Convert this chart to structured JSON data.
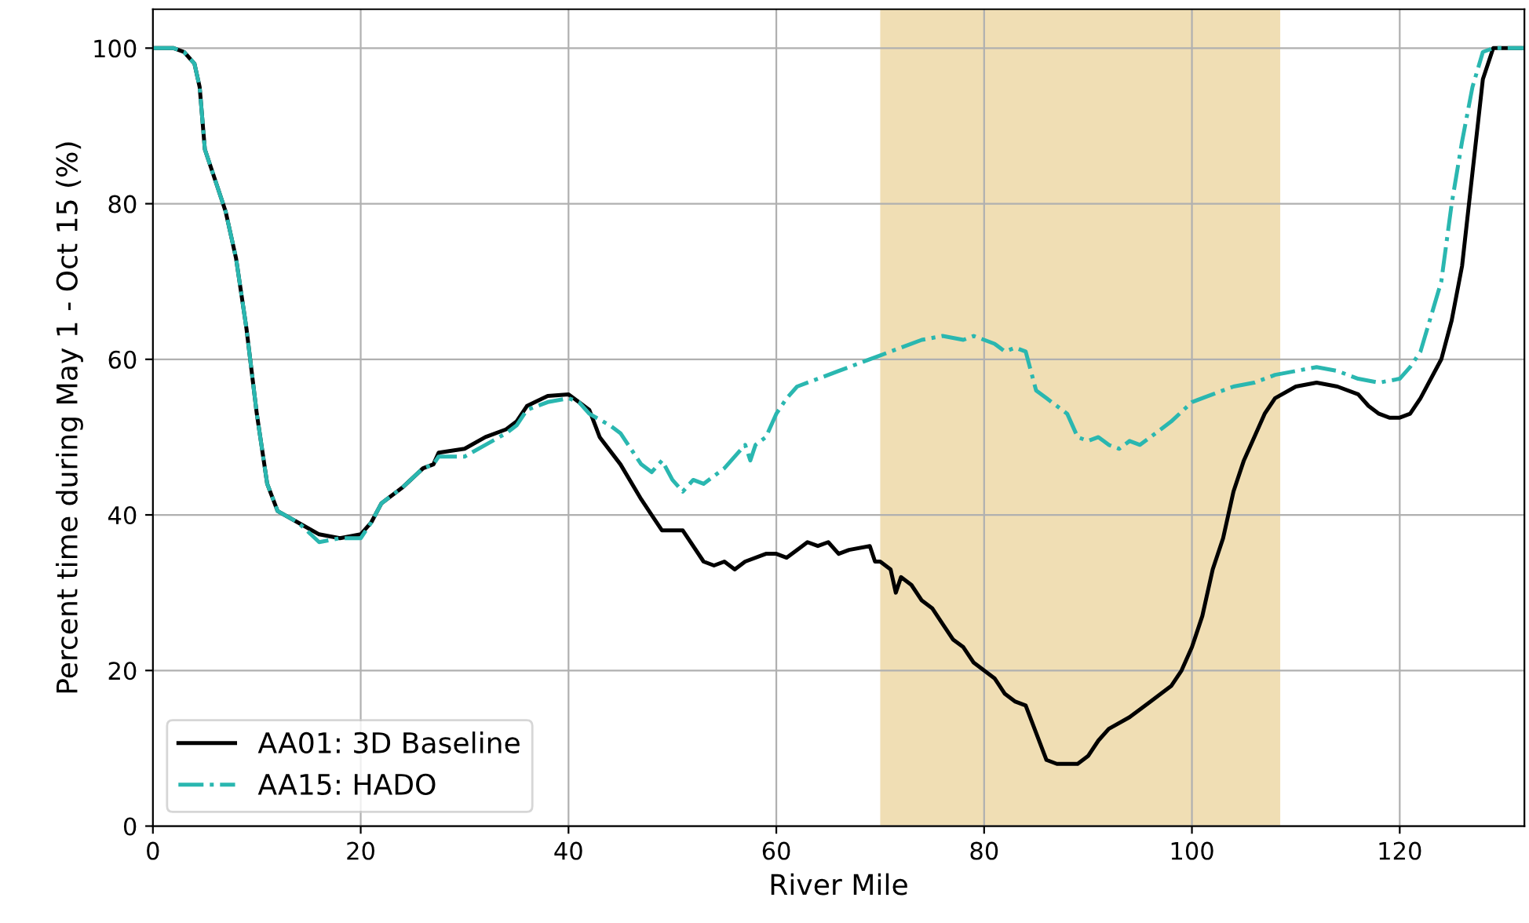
{
  "chart_data": {
    "type": "line",
    "xlabel": "River Mile",
    "ylabel": "Percent time during May 1 - Oct 15 (%)",
    "xlim": [
      0,
      132
    ],
    "ylim": [
      0,
      105
    ],
    "xticks": [
      0,
      20,
      40,
      60,
      80,
      100,
      120
    ],
    "yticks": [
      0,
      20,
      40,
      60,
      80,
      100
    ],
    "grid": true,
    "legend": "bottom left",
    "bands": [
      {
        "axis": "x",
        "from": 70,
        "to": 108.5,
        "color": "#f0deb4"
      }
    ],
    "series": [
      {
        "name": "AA01: 3D Baseline",
        "color": "#000000",
        "line_style": "solid",
        "x": [
          0,
          2,
          3,
          4,
          4.5,
          5,
          6,
          7,
          8,
          9,
          10,
          11,
          12,
          14,
          16,
          18,
          20,
          21,
          22,
          24,
          26,
          27,
          27.5,
          30,
          32,
          34,
          35,
          36,
          38,
          40,
          42,
          43,
          45,
          47,
          48,
          49,
          51,
          53,
          54,
          55,
          56,
          57,
          59,
          60,
          61,
          63,
          64,
          65,
          66,
          67,
          69,
          69.5,
          70,
          71,
          71.5,
          72,
          73,
          74,
          75,
          76,
          77,
          78,
          79,
          80,
          81,
          82,
          83,
          84,
          85,
          86,
          87,
          88,
          89,
          90,
          91,
          92,
          94,
          96,
          98,
          99,
          100,
          101,
          102,
          103,
          104,
          105,
          106,
          107,
          108,
          110,
          112,
          114,
          116,
          117,
          118,
          119,
          120,
          121,
          122,
          124,
          125,
          126,
          127,
          128,
          129,
          132
        ],
        "values": [
          100,
          100,
          99.5,
          98,
          95,
          87,
          83,
          79,
          73,
          64,
          53,
          44,
          40.5,
          39,
          37.5,
          37,
          37.5,
          39,
          41.5,
          43.5,
          46,
          46.5,
          48,
          48.5,
          50,
          51,
          52,
          54,
          55.3,
          55.5,
          53.5,
          50,
          46.5,
          42,
          40,
          38,
          38,
          34,
          33.5,
          34,
          33,
          34,
          35,
          35,
          34.5,
          36.5,
          36,
          36.5,
          35,
          35.5,
          36,
          34,
          34,
          33,
          30,
          32,
          31,
          29,
          28,
          26,
          24,
          23,
          21,
          20,
          19,
          17,
          16,
          15.5,
          12,
          8.5,
          8,
          8,
          8,
          9,
          11,
          12.5,
          14,
          16,
          18,
          20,
          23,
          27,
          33,
          37,
          43,
          47,
          50,
          53,
          55,
          56.5,
          57,
          56.5,
          55.5,
          54,
          53,
          52.5,
          52.5,
          53,
          55,
          60,
          65,
          72,
          84,
          96,
          100,
          100
        ]
      },
      {
        "name": "AA15: HADO",
        "color": "#2ab7b0",
        "line_style": "dashdot",
        "x": [
          0,
          2,
          3,
          4,
          4.5,
          5,
          6,
          7,
          8,
          9,
          10,
          11,
          12,
          14,
          16,
          18,
          20,
          21,
          22,
          24,
          26,
          27,
          27.5,
          30,
          32,
          34,
          35,
          36,
          38,
          40,
          41,
          42,
          44,
          45,
          46,
          47,
          48,
          49,
          50,
          51,
          52,
          53,
          54,
          55,
          56,
          57,
          57.5,
          58,
          59,
          60,
          61,
          62,
          64,
          66,
          68,
          70,
          72,
          74,
          76,
          78,
          79,
          80,
          81,
          82,
          83,
          84,
          85,
          86,
          87,
          88,
          89,
          90,
          91,
          92,
          93,
          94,
          95,
          96,
          98,
          100,
          102,
          104,
          106,
          108,
          110,
          112,
          114,
          116,
          118,
          120,
          121,
          122,
          124,
          125,
          126,
          127,
          128,
          129,
          132
        ],
        "values": [
          100,
          100,
          99.5,
          98,
          95,
          87,
          83,
          79,
          73,
          64,
          53,
          44,
          40.5,
          39,
          36.5,
          37,
          37,
          39,
          41.5,
          43.5,
          46,
          46.5,
          47.5,
          47.5,
          49,
          50.5,
          51.5,
          53.5,
          54.5,
          55,
          54.5,
          53,
          51.5,
          50.5,
          48.5,
          46.5,
          45.5,
          47,
          44.5,
          43,
          44.5,
          44,
          45,
          46,
          47.5,
          49,
          47,
          49,
          50,
          53,
          55,
          56.5,
          57.5,
          58.5,
          59.5,
          60.5,
          61.5,
          62.5,
          63,
          62.5,
          63,
          62.5,
          62,
          61,
          61.5,
          61,
          56,
          55,
          54,
          53,
          50,
          49.5,
          50,
          49,
          48.5,
          49.5,
          49,
          50,
          52,
          54.5,
          55.5,
          56.5,
          57,
          58,
          58.5,
          59,
          58.5,
          57.5,
          57,
          57.5,
          59,
          61,
          70,
          80,
          88,
          95,
          99.5,
          100,
          100
        ]
      }
    ]
  }
}
